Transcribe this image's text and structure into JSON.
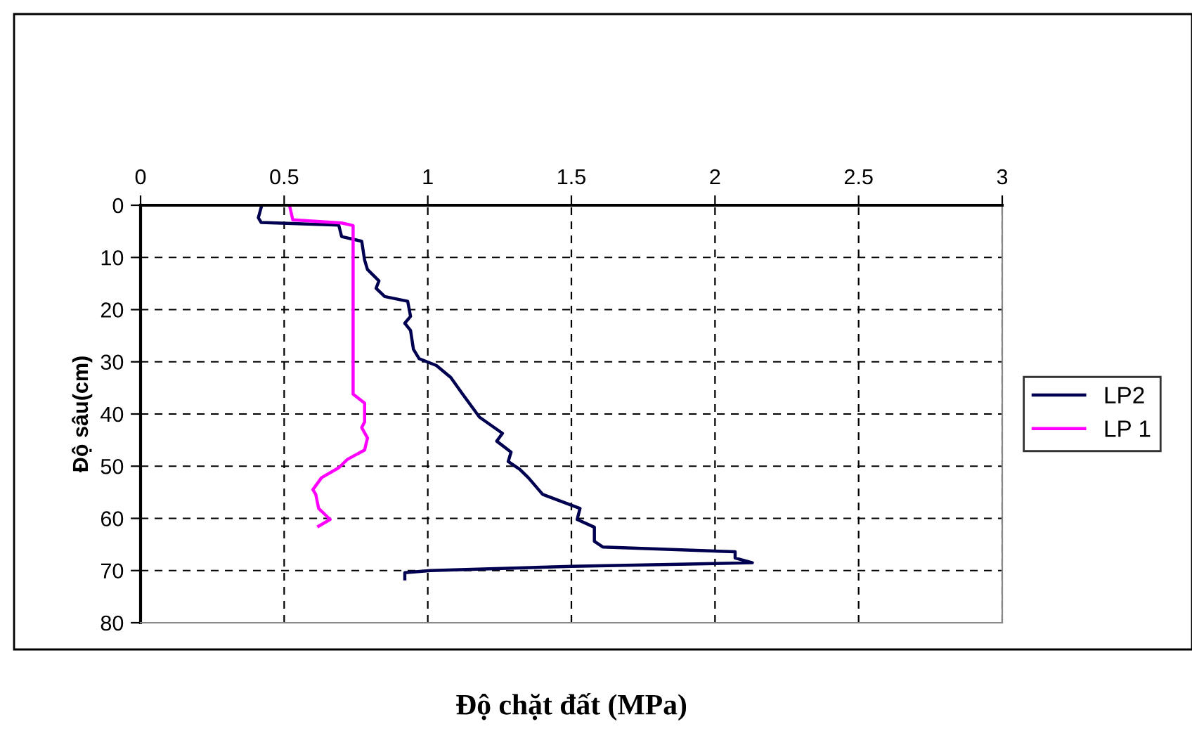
{
  "chart_data": {
    "type": "line",
    "xlabel": "Độ chặt đất (MPa)",
    "ylabel": "Độ sâu(cm)",
    "xlim": [
      0,
      3
    ],
    "xticks": [
      0,
      0.5,
      1,
      1.5,
      2,
      2.5,
      3
    ],
    "ylim": [
      80,
      0
    ],
    "yticks": [
      0,
      10,
      20,
      30,
      40,
      50,
      60,
      70,
      80
    ],
    "grid": true,
    "legend": "right",
    "series": [
      {
        "name": "LP2",
        "color": "#000050",
        "x": [
          0.42,
          0.41,
          0.42,
          0.69,
          0.7,
          0.77,
          0.78,
          0.79,
          0.83,
          0.82,
          0.85,
          0.93,
          0.94,
          0.92,
          0.94,
          0.95,
          0.97,
          1.03,
          1.08,
          1.12,
          1.18,
          1.26,
          1.24,
          1.29,
          1.28,
          1.32,
          1.35,
          1.4,
          1.53,
          1.52,
          1.58,
          1.58,
          1.61,
          2.07,
          2.07,
          2.13,
          1.5,
          1.01,
          0.92,
          0.92
        ],
        "values": [
          0.4,
          2.4,
          3.3,
          3.8,
          6,
          6.9,
          10.5,
          12.3,
          14.5,
          15.9,
          17.5,
          18.4,
          21.3,
          22.6,
          24,
          27.6,
          29.4,
          30.7,
          33,
          36.1,
          40.6,
          43.7,
          45.2,
          47.3,
          49.1,
          50.6,
          52.2,
          55.4,
          58.1,
          60.2,
          61.7,
          64.4,
          65.5,
          66.4,
          67.6,
          68.5,
          69.2,
          70,
          70.4,
          71.6
        ]
      },
      {
        "name": "LP 1",
        "color": "#ff00ff",
        "x": [
          0.52,
          0.53,
          0.7,
          0.74,
          0.74,
          0.78,
          0.78,
          0.77,
          0.79,
          0.78,
          0.72,
          0.69,
          0.63,
          0.6,
          0.61,
          0.62,
          0.66,
          0.62
        ],
        "values": [
          0.4,
          2.8,
          3.4,
          3.9,
          36.2,
          37.9,
          41.5,
          42.6,
          44.6,
          46.9,
          48.7,
          50.3,
          52.2,
          54.5,
          55.4,
          58.1,
          60.2,
          61.5
        ]
      }
    ]
  }
}
